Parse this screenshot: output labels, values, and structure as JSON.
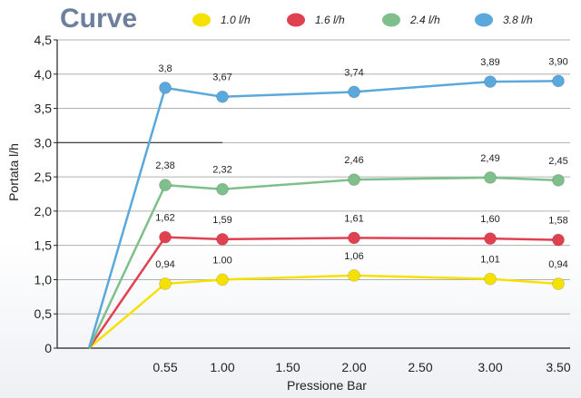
{
  "chart_data": {
    "type": "line",
    "title": "Curve",
    "xlabel": "Pressione Bar",
    "ylabel": "Portata l/h",
    "x": [
      0,
      0.55,
      1.0,
      2.0,
      3.0,
      3.5
    ],
    "x_tick_labels": [
      "0.55",
      "1.00",
      "1.50",
      "2.00",
      "2.50",
      "3.00",
      "3.50"
    ],
    "y_tick_labels": [
      "0",
      "0,5",
      "1,0",
      "1,5",
      "2,0",
      "2,5",
      "3,0",
      "3,5",
      "4,0",
      "4,5"
    ],
    "ylim": [
      0,
      4.5
    ],
    "legend_position": "top",
    "series": [
      {
        "name": "1.0 l/h",
        "color": "#f5e100",
        "values": [
          0,
          0.94,
          1.0,
          1.06,
          1.01,
          0.94
        ],
        "labels": [
          "",
          "0,94",
          "1.00",
          "1,06",
          "1,01",
          "0,94"
        ]
      },
      {
        "name": "1.6 l/h",
        "color": "#e04150",
        "values": [
          0,
          1.62,
          1.59,
          1.61,
          1.6,
          1.58
        ],
        "labels": [
          "",
          "1,62",
          "1,59",
          "1,61",
          "1,60",
          "1,58"
        ]
      },
      {
        "name": "2.4 l/h",
        "color": "#7fbf8c",
        "values": [
          0,
          2.38,
          2.32,
          2.46,
          2.49,
          2.45
        ],
        "labels": [
          "",
          "2,38",
          "2,32",
          "2,46",
          "2,49",
          "2,45"
        ]
      },
      {
        "name": "3.8 l/h",
        "color": "#5aa8dc",
        "values": [
          0,
          3.8,
          3.67,
          3.74,
          3.89,
          3.9
        ],
        "labels": [
          "",
          "3,8",
          "3,67",
          "3,74",
          "3,89",
          "3,90"
        ]
      }
    ]
  }
}
